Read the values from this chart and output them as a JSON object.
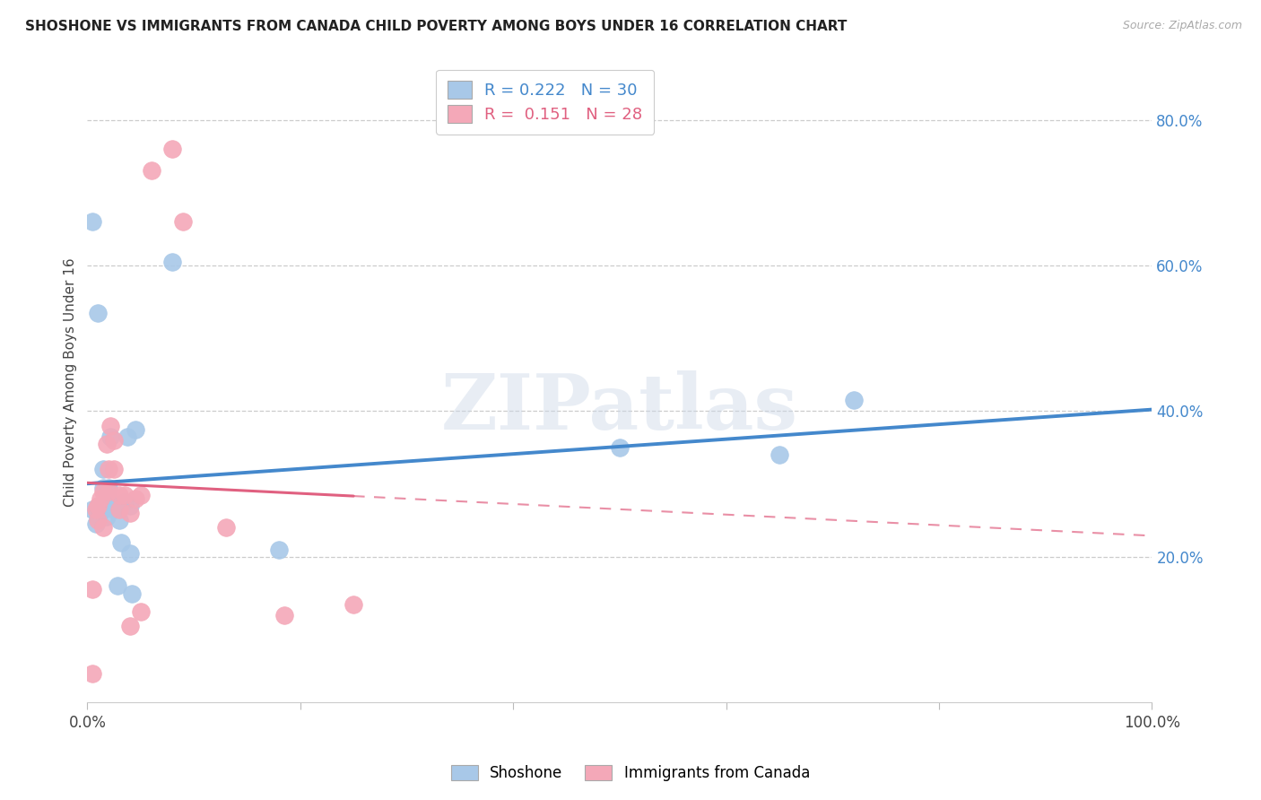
{
  "title": "SHOSHONE VS IMMIGRANTS FROM CANADA CHILD POVERTY AMONG BOYS UNDER 16 CORRELATION CHART",
  "source": "Source: ZipAtlas.com",
  "ylabel": "Child Poverty Among Boys Under 16",
  "xlim": [
    0.0,
    1.0
  ],
  "ylim": [
    0.0,
    0.88
  ],
  "xticks": [
    0.0,
    0.2,
    0.4,
    0.6,
    0.8,
    1.0
  ],
  "xtick_labels": [
    "0.0%",
    "",
    "",
    "",
    "",
    "100.0%"
  ],
  "ytick_positions": [
    0.2,
    0.4,
    0.6,
    0.8
  ],
  "ytick_labels": [
    "20.0%",
    "40.0%",
    "60.0%",
    "80.0%"
  ],
  "shoshone_R": 0.222,
  "shoshone_N": 30,
  "canada_R": 0.151,
  "canada_N": 28,
  "shoshone_color": "#a8c8e8",
  "canada_color": "#f4a8b8",
  "shoshone_line_color": "#4488cc",
  "canada_line_color": "#e06080",
  "watermark": "ZIPatlas",
  "shoshone_x": [
    0.005,
    0.008,
    0.01,
    0.01,
    0.012,
    0.015,
    0.015,
    0.018,
    0.02,
    0.02,
    0.022,
    0.025,
    0.025,
    0.028,
    0.03,
    0.032,
    0.035,
    0.038,
    0.04,
    0.04,
    0.042,
    0.045,
    0.005,
    0.01,
    0.015,
    0.08,
    0.18,
    0.5,
    0.65,
    0.72
  ],
  "shoshone_y": [
    0.265,
    0.245,
    0.255,
    0.265,
    0.265,
    0.295,
    0.265,
    0.255,
    0.28,
    0.295,
    0.365,
    0.27,
    0.265,
    0.16,
    0.25,
    0.22,
    0.275,
    0.365,
    0.27,
    0.205,
    0.15,
    0.375,
    0.66,
    0.535,
    0.32,
    0.605,
    0.21,
    0.35,
    0.34,
    0.415
  ],
  "canada_x": [
    0.005,
    0.005,
    0.008,
    0.01,
    0.01,
    0.012,
    0.015,
    0.015,
    0.018,
    0.02,
    0.02,
    0.022,
    0.025,
    0.025,
    0.03,
    0.03,
    0.035,
    0.04,
    0.04,
    0.045,
    0.05,
    0.05,
    0.06,
    0.08,
    0.09,
    0.13,
    0.185,
    0.25
  ],
  "canada_y": [
    0.155,
    0.04,
    0.265,
    0.27,
    0.25,
    0.28,
    0.29,
    0.24,
    0.355,
    0.32,
    0.29,
    0.38,
    0.36,
    0.32,
    0.285,
    0.265,
    0.285,
    0.26,
    0.105,
    0.28,
    0.285,
    0.125,
    0.73,
    0.76,
    0.66,
    0.24,
    0.12,
    0.135
  ]
}
